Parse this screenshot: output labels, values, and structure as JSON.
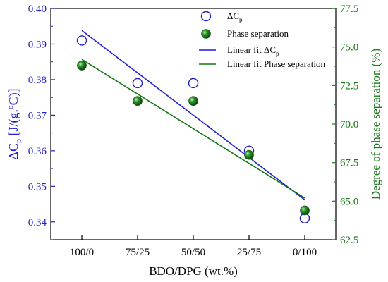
{
  "chart_data": {
    "type": "scatter",
    "categories": [
      "100/0",
      "75/25",
      "50/50",
      "25/75",
      "0/100"
    ],
    "xlabel": "BDO/DPG (wt.%)",
    "ylabel_left": {
      "main": "ΔC",
      "sub": "p",
      "rest": " [J/(g.ºC)]"
    },
    "ylabel_right": "Degree of phase separation (%)",
    "ylim_left": [
      0.335,
      0.4
    ],
    "yticks_left": [
      0.34,
      0.35,
      0.36,
      0.37,
      0.38,
      0.39,
      0.4
    ],
    "ytick_labels_left": [
      "0.34",
      "0.35",
      "0.36",
      "0.37",
      "0.38",
      "0.39",
      "0.40"
    ],
    "ylim_right": [
      62.5,
      77.5
    ],
    "yticks_right": [
      62.5,
      65.0,
      67.5,
      70.0,
      72.5,
      75.0,
      77.5
    ],
    "ytick_labels_right": [
      "62.5",
      "65.0",
      "67.5",
      "70.0",
      "72.5",
      "75.0",
      "77.5"
    ],
    "grid": false,
    "legend_position": "top-right",
    "colors": {
      "left_axis": "#1f1fcc",
      "right_axis": "#1a7a1a",
      "dc_fit": "#1f1fcc",
      "ps_fit": "#117711",
      "ps_marker": "#1a7a1a"
    },
    "series": [
      {
        "name": "ΔCp",
        "legend": {
          "main": "ΔC",
          "sub": "p"
        },
        "axis": "left",
        "marker": "open-circle",
        "values": [
          0.391,
          0.379,
          0.379,
          0.36,
          0.341
        ]
      },
      {
        "name": "Phase separation",
        "legend": {
          "main": "Phase separation",
          "sub": ""
        },
        "axis": "right",
        "marker": "filled-sphere",
        "values": [
          73.8,
          71.5,
          71.5,
          68.0,
          64.4
        ]
      },
      {
        "name": "Linear fit ΔCp",
        "legend": {
          "main": "Linear fit ΔC",
          "sub": "p"
        },
        "axis": "left",
        "marker": "line",
        "fit_endpoints": [
          0.3938,
          0.3462
        ]
      },
      {
        "name": "Linear fit Phase separation",
        "legend": {
          "main": "Linear fit Phase separation",
          "sub": ""
        },
        "axis": "right",
        "marker": "line",
        "fit_endpoints": [
          74.2,
          65.2
        ]
      }
    ]
  }
}
